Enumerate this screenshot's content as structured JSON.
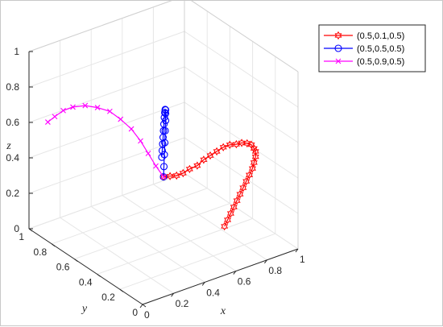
{
  "chart_data": {
    "type": "line",
    "title": "",
    "xlabel": "x",
    "ylabel": "y",
    "zlabel": "z",
    "xlim": [
      0,
      1
    ],
    "ylim": [
      0,
      1
    ],
    "zlim": [
      0,
      1
    ],
    "x_ticks": [
      "0",
      "0.2",
      "0.4",
      "0.6",
      "0.8",
      "1"
    ],
    "y_ticks": [
      "0",
      "0.2",
      "0.4",
      "0.6",
      "0.8",
      "1"
    ],
    "z_ticks": [
      "0",
      "0.2",
      "0.4",
      "0.6",
      "0.8",
      "1"
    ],
    "grid": true,
    "box": true,
    "legend_position": "top-right",
    "series": [
      {
        "name": "(0.5,0.1,0.5)",
        "color": "#ff0000",
        "marker": "hexagram",
        "points": [
          [
            0.5,
            0.5,
            0.35
          ],
          [
            0.52,
            0.47,
            0.36
          ],
          [
            0.54,
            0.44,
            0.37
          ],
          [
            0.56,
            0.41,
            0.39
          ],
          [
            0.58,
            0.38,
            0.42
          ],
          [
            0.6,
            0.34,
            0.45
          ],
          [
            0.62,
            0.31,
            0.49
          ],
          [
            0.64,
            0.28,
            0.52
          ],
          [
            0.66,
            0.25,
            0.55
          ],
          [
            0.68,
            0.22,
            0.58
          ],
          [
            0.7,
            0.19,
            0.6
          ],
          [
            0.72,
            0.16,
            0.61
          ],
          [
            0.74,
            0.14,
            0.62
          ],
          [
            0.76,
            0.12,
            0.62
          ],
          [
            0.78,
            0.11,
            0.61
          ],
          [
            0.79,
            0.1,
            0.59
          ],
          [
            0.8,
            0.1,
            0.57
          ],
          [
            0.8,
            0.1,
            0.54
          ],
          [
            0.79,
            0.1,
            0.51
          ],
          [
            0.78,
            0.1,
            0.48
          ],
          [
            0.76,
            0.1,
            0.45
          ],
          [
            0.74,
            0.1,
            0.42
          ],
          [
            0.72,
            0.1,
            0.39
          ],
          [
            0.7,
            0.1,
            0.36
          ],
          [
            0.68,
            0.1,
            0.33
          ],
          [
            0.66,
            0.1,
            0.3
          ],
          [
            0.64,
            0.1,
            0.27
          ],
          [
            0.62,
            0.1,
            0.24
          ],
          [
            0.6,
            0.1,
            0.21
          ]
        ]
      },
      {
        "name": "(0.5,0.5,0.5)",
        "color": "#0000ff",
        "marker": "circle",
        "points": [
          [
            0.5,
            0.5,
            0.35
          ],
          [
            0.51,
            0.51,
            0.4
          ],
          [
            0.52,
            0.52,
            0.46
          ],
          [
            0.53,
            0.53,
            0.52
          ],
          [
            0.54,
            0.54,
            0.58
          ],
          [
            0.55,
            0.55,
            0.63
          ],
          [
            0.55,
            0.55,
            0.67
          ],
          [
            0.55,
            0.55,
            0.69
          ],
          [
            0.54,
            0.54,
            0.7
          ],
          [
            0.53,
            0.53,
            0.69
          ],
          [
            0.52,
            0.52,
            0.67
          ],
          [
            0.51,
            0.51,
            0.64
          ],
          [
            0.5,
            0.5,
            0.61
          ],
          [
            0.49,
            0.49,
            0.58
          ],
          [
            0.48,
            0.48,
            0.55
          ],
          [
            0.47,
            0.47,
            0.52
          ],
          [
            0.46,
            0.46,
            0.49
          ]
        ]
      },
      {
        "name": "(0.5,0.9,0.5)",
        "color": "#ff00ff",
        "marker": "x",
        "points": [
          [
            0.5,
            0.5,
            0.35
          ],
          [
            0.48,
            0.54,
            0.4
          ],
          [
            0.46,
            0.58,
            0.46
          ],
          [
            0.44,
            0.62,
            0.52
          ],
          [
            0.41,
            0.66,
            0.58
          ],
          [
            0.37,
            0.7,
            0.63
          ],
          [
            0.33,
            0.74,
            0.67
          ],
          [
            0.28,
            0.78,
            0.69
          ],
          [
            0.23,
            0.82,
            0.7
          ],
          [
            0.18,
            0.86,
            0.69
          ],
          [
            0.14,
            0.89,
            0.67
          ],
          [
            0.1,
            0.91,
            0.64
          ],
          [
            0.07,
            0.93,
            0.61
          ]
        ]
      }
    ]
  }
}
